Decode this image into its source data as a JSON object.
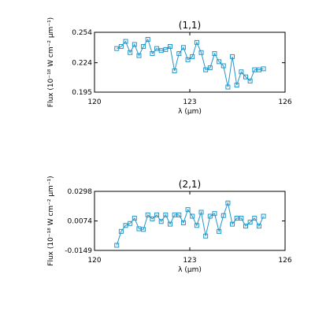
{
  "chart_data": [
    {
      "type": "line",
      "title": "(1,1)",
      "xlabel": "λ (μm)",
      "ylabel": "Flux (10⁻¹⁸ W cm⁻² μm⁻¹)",
      "xlim": [
        120,
        126
      ],
      "ylim": [
        0.195,
        0.254
      ],
      "xticks": [
        120,
        123,
        126
      ],
      "xtick_labels": [
        "120",
        "123",
        "126"
      ],
      "yticks": [
        0.195,
        0.224,
        0.254
      ],
      "ytick_labels": [
        "0.195",
        "0.224",
        "0.254"
      ],
      "grid": false,
      "marker": "square",
      "color": "#2196c9",
      "series": [
        {
          "x": [
            120.7,
            120.84,
            120.98,
            121.12,
            121.26,
            121.4,
            121.54,
            121.68,
            121.82,
            121.96,
            122.1,
            122.24,
            122.38,
            122.52,
            122.66,
            122.8,
            122.94,
            123.08,
            123.22,
            123.36,
            123.5,
            123.64,
            123.78,
            123.92,
            124.06,
            124.2,
            124.34,
            124.48,
            124.62,
            124.76,
            124.9,
            125.04,
            125.18,
            125.32
          ],
          "y": [
            0.238,
            0.24,
            0.245,
            0.234,
            0.242,
            0.231,
            0.24,
            0.247,
            0.233,
            0.238,
            0.236,
            0.237,
            0.24,
            0.216,
            0.233,
            0.239,
            0.227,
            0.23,
            0.244,
            0.234,
            0.217,
            0.219,
            0.233,
            0.225,
            0.221,
            0.2,
            0.23,
            0.202,
            0.215,
            0.21,
            0.206,
            0.217,
            0.217,
            0.218
          ]
        }
      ]
    },
    {
      "type": "line",
      "title": "(2,1)",
      "xlabel": "λ (μm)",
      "ylabel": "Flux (10⁻¹⁸ W cm⁻² μm⁻¹)",
      "xlim": [
        120,
        126
      ],
      "ylim": [
        -0.0149,
        0.0298
      ],
      "xticks": [
        120,
        123,
        126
      ],
      "xtick_labels": [
        "120",
        "123",
        "126"
      ],
      "yticks": [
        -0.0149,
        0.0074,
        0.0298
      ],
      "ytick_labels": [
        "-0.0149",
        "0.0074",
        "0.0298"
      ],
      "grid": false,
      "marker": "square",
      "color": "#2196c9",
      "series": [
        {
          "x": [
            120.7,
            120.84,
            120.98,
            121.12,
            121.26,
            121.4,
            121.54,
            121.68,
            121.82,
            121.96,
            122.1,
            122.24,
            122.38,
            122.52,
            122.66,
            122.8,
            122.94,
            123.08,
            123.22,
            123.36,
            123.5,
            123.64,
            123.78,
            123.92,
            124.06,
            124.2,
            124.34,
            124.48,
            124.62,
            124.76,
            124.9,
            125.04,
            125.18,
            125.32
          ],
          "y": [
            -0.011,
            -0.0005,
            0.004,
            0.0055,
            0.0095,
            0.0015,
            0.001,
            0.012,
            0.009,
            0.012,
            0.007,
            0.012,
            0.005,
            0.012,
            0.012,
            0.006,
            0.016,
            0.011,
            0.004,
            0.014,
            -0.004,
            0.011,
            0.013,
            -0.0005,
            0.0115,
            0.021,
            0.005,
            0.0095,
            0.0095,
            0.0035,
            0.0065,
            0.0095,
            0.0035,
            0.011
          ]
        }
      ]
    }
  ]
}
